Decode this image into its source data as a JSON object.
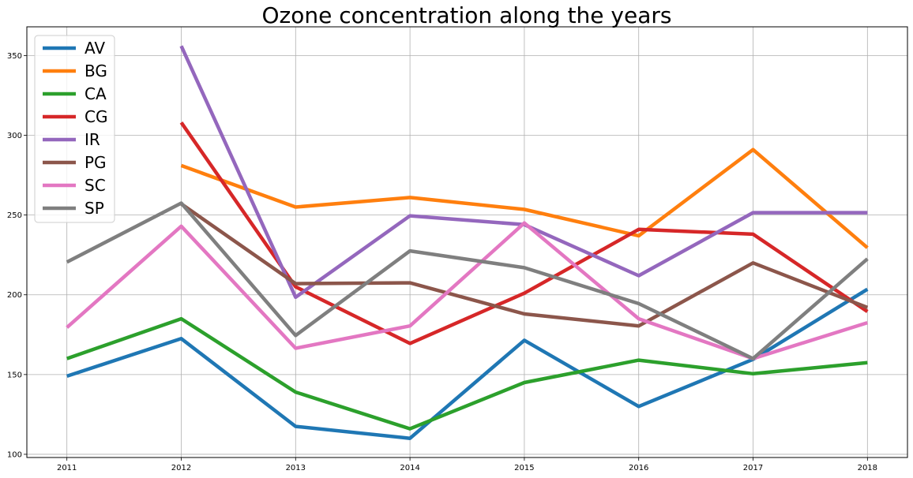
{
  "chart_data": {
    "type": "line",
    "title": "Ozone concentration along the years",
    "xlabel": "",
    "ylabel": "",
    "x": [
      2011,
      2012,
      2013,
      2014,
      2015,
      2016,
      2017,
      2018
    ],
    "x_tick_labels": [
      "2011",
      "2012",
      "2013",
      "2014",
      "2015",
      "2016",
      "2017",
      "2018"
    ],
    "y_ticks": [
      100,
      150,
      200,
      250,
      300,
      350
    ],
    "y_tick_labels": [
      "100",
      "150",
      "200",
      "250",
      "300",
      "350"
    ],
    "xlim": [
      2010.65,
      2018.35
    ],
    "ylim": [
      98,
      368
    ],
    "grid": true,
    "legend_position": "upper-left",
    "series": [
      {
        "name": "AV",
        "color": "#1f77b4",
        "values": [
          149,
          172.5,
          117.5,
          110,
          171.5,
          130,
          159.5,
          203.5
        ]
      },
      {
        "name": "BG",
        "color": "#ff7f0e",
        "values": [
          null,
          281,
          255,
          261,
          253.5,
          237,
          291,
          229.5
        ]
      },
      {
        "name": "CA",
        "color": "#2ca02c",
        "values": [
          160,
          185,
          139,
          116,
          145,
          159,
          150.5,
          157.5
        ]
      },
      {
        "name": "CG",
        "color": "#d62728",
        "values": [
          null,
          308,
          205,
          169.5,
          201,
          241,
          238,
          189.5
        ]
      },
      {
        "name": "IR",
        "color": "#9467bd",
        "values": [
          null,
          356,
          198.5,
          249.5,
          244,
          212,
          251.5,
          251.5
        ]
      },
      {
        "name": "PG",
        "color": "#8c564b",
        "values": [
          null,
          257,
          207,
          207.5,
          188,
          180.5,
          220,
          192
        ]
      },
      {
        "name": "SC",
        "color": "#e377c2",
        "values": [
          179.5,
          243,
          166.5,
          180.5,
          245,
          185,
          160,
          182.5
        ]
      },
      {
        "name": "SP",
        "color": "#7f7f7f",
        "values": [
          220.5,
          257.5,
          174.5,
          227.5,
          217,
          194.5,
          160,
          222.5
        ]
      }
    ]
  }
}
